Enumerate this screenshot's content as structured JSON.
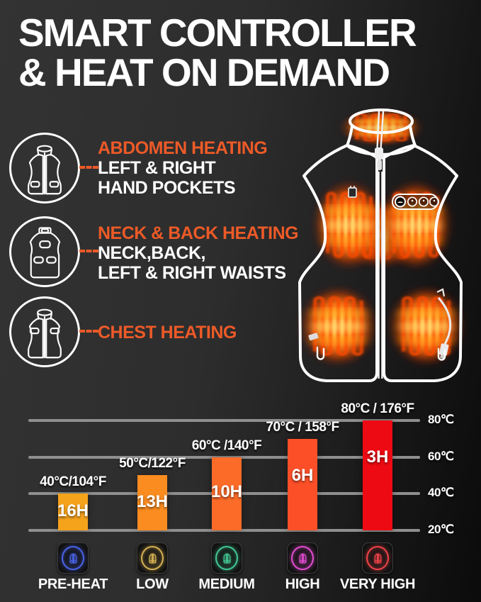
{
  "title": {
    "line1": "SMART CONTROLLER",
    "line2": "& HEAT ON DEMAND"
  },
  "features": [
    {
      "heading": "ABDOMEN HEATING",
      "line1": "LEFT & RIGHT",
      "line2": "HAND POCKETS"
    },
    {
      "heading": "NECK & BACK HEATING",
      "line1": "NECK,BACK,",
      "line2": "LEFT & RIGHT WAISTS"
    },
    {
      "heading": "CHEST HEATING"
    }
  ],
  "colors": {
    "accent_orange": "#ED5A28",
    "text_white": "#FFFFFF",
    "gridline_gray": "#8F8F8F",
    "background_dark": "#0B0B0B",
    "background_light": "#333333"
  },
  "chart_data": {
    "type": "bar",
    "categories": [
      "PRE-HEAT",
      "LOW",
      "MEDIUM",
      "HIGH",
      "VERY HIGH"
    ],
    "series": [
      {
        "name": "temperature_c",
        "values": [
          40,
          50,
          60,
          70,
          80
        ]
      }
    ],
    "bar_value_labels": [
      "40°C/104°F",
      "50°C/122°F",
      "60°C /140°F",
      "70°C / 158°F",
      "80°C / 176°F"
    ],
    "duration_labels": [
      "16H",
      "13H",
      "10H",
      "6H",
      "3H"
    ],
    "bar_colors": [
      "#F5A31B",
      "#FB8C20",
      "#FC6B28",
      "#FC4F28",
      "#EE0A12"
    ],
    "level_icon_colors": [
      "#4A63E8",
      "#D4B052",
      "#43C794",
      "#E14CCF",
      "#EF4348"
    ],
    "y_axis_ticks": [
      "80℃",
      "60℃",
      "40℃",
      "20℃"
    ],
    "ylim": [
      20,
      80
    ],
    "grid": true,
    "legend": "none"
  }
}
